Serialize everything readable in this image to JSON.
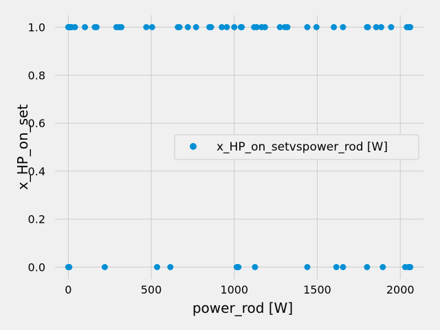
{
  "chart_data": {
    "type": "scatter",
    "title": "",
    "xlabel": "power_rod [W]",
    "ylabel": "x_HP_on_set",
    "xlim": [
      -80,
      2140
    ],
    "ylim": [
      -0.05,
      1.05
    ],
    "xticks": [
      0,
      500,
      1000,
      1500,
      2000
    ],
    "yticks": [
      0.0,
      0.2,
      0.4,
      0.6,
      0.8,
      1.0
    ],
    "xtick_labels": [
      "0",
      "500",
      "1000",
      "1500",
      "2000"
    ],
    "ytick_labels": [
      "0.0",
      "0.2",
      "0.4",
      "0.6",
      "0.8",
      "1.0"
    ],
    "grid": true,
    "legend_position": "center-right",
    "colors": {
      "series": "#008fd5",
      "background": "#f0f0f0",
      "grid": "#cbcbcb"
    },
    "series": [
      {
        "name": "x_HP_on_setvspower_rod [W]",
        "points": [
          [
            0,
            1
          ],
          [
            2,
            1
          ],
          [
            5,
            1
          ],
          [
            10,
            1
          ],
          [
            15,
            1
          ],
          [
            20,
            1
          ],
          [
            40,
            1
          ],
          [
            100,
            1
          ],
          [
            160,
            1
          ],
          [
            170,
            1
          ],
          [
            290,
            1
          ],
          [
            305,
            1
          ],
          [
            320,
            1
          ],
          [
            470,
            1
          ],
          [
            505,
            1
          ],
          [
            660,
            1
          ],
          [
            670,
            1
          ],
          [
            720,
            1
          ],
          [
            770,
            1
          ],
          [
            850,
            1
          ],
          [
            860,
            1
          ],
          [
            925,
            1
          ],
          [
            955,
            1
          ],
          [
            1000,
            1
          ],
          [
            1040,
            1
          ],
          [
            1045,
            1
          ],
          [
            1120,
            1
          ],
          [
            1135,
            1
          ],
          [
            1165,
            1
          ],
          [
            1185,
            1
          ],
          [
            1275,
            1
          ],
          [
            1305,
            1
          ],
          [
            1320,
            1
          ],
          [
            1440,
            1
          ],
          [
            1495,
            1
          ],
          [
            1600,
            1
          ],
          [
            1655,
            1
          ],
          [
            1800,
            1
          ],
          [
            1805,
            1
          ],
          [
            1855,
            1
          ],
          [
            1885,
            1
          ],
          [
            1945,
            1
          ],
          [
            2040,
            1
          ],
          [
            2050,
            1
          ],
          [
            2055,
            1
          ],
          [
            2058,
            1
          ],
          [
            2060,
            1
          ],
          [
            0,
            0
          ],
          [
            3,
            0
          ],
          [
            6,
            0
          ],
          [
            220,
            0
          ],
          [
            535,
            0
          ],
          [
            615,
            0
          ],
          [
            1015,
            0
          ],
          [
            1025,
            0
          ],
          [
            1125,
            0
          ],
          [
            1440,
            0
          ],
          [
            1615,
            0
          ],
          [
            1655,
            0
          ],
          [
            1800,
            0
          ],
          [
            1895,
            0
          ],
          [
            2030,
            0
          ],
          [
            2050,
            0
          ],
          [
            2055,
            0
          ],
          [
            2060,
            0
          ]
        ]
      }
    ]
  }
}
